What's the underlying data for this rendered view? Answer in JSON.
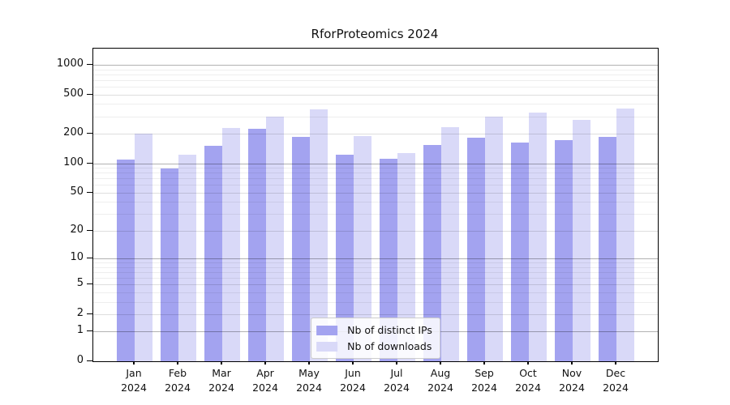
{
  "chart_data": {
    "type": "bar",
    "title": "RforProteomics 2024",
    "categories": [
      "Jan 2024",
      "Feb 2024",
      "Mar 2024",
      "Apr 2024",
      "May 2024",
      "Jun 2024",
      "Jul 2024",
      "Aug 2024",
      "Sep 2024",
      "Oct 2024",
      "Nov 2024",
      "Dec 2024"
    ],
    "series": [
      {
        "name": "Nb of distinct IPs",
        "color": "#a3a3f0",
        "values": [
          110,
          88,
          151,
          225,
          185,
          123,
          111,
          153,
          183,
          163,
          171,
          186
        ]
      },
      {
        "name": "Nb of downloads",
        "color": "#d9d9f8",
        "values": [
          200,
          123,
          230,
          300,
          355,
          190,
          128,
          235,
          300,
          330,
          278,
          360
        ]
      }
    ],
    "y_scale": "log1p",
    "y_ticks": [
      0,
      1,
      2,
      5,
      10,
      20,
      50,
      100,
      200,
      500,
      1000
    ],
    "y_minor_gridlines": [
      3,
      4,
      6,
      7,
      8,
      9,
      30,
      40,
      60,
      70,
      80,
      90,
      300,
      400,
      600,
      700,
      800,
      900
    ],
    "y_decade_gridlines": [
      1,
      10,
      100,
      1000
    ],
    "ylim": [
      0,
      1450
    ],
    "grid": true,
    "legend_position": "lower center",
    "background_color": "#ffffff"
  }
}
